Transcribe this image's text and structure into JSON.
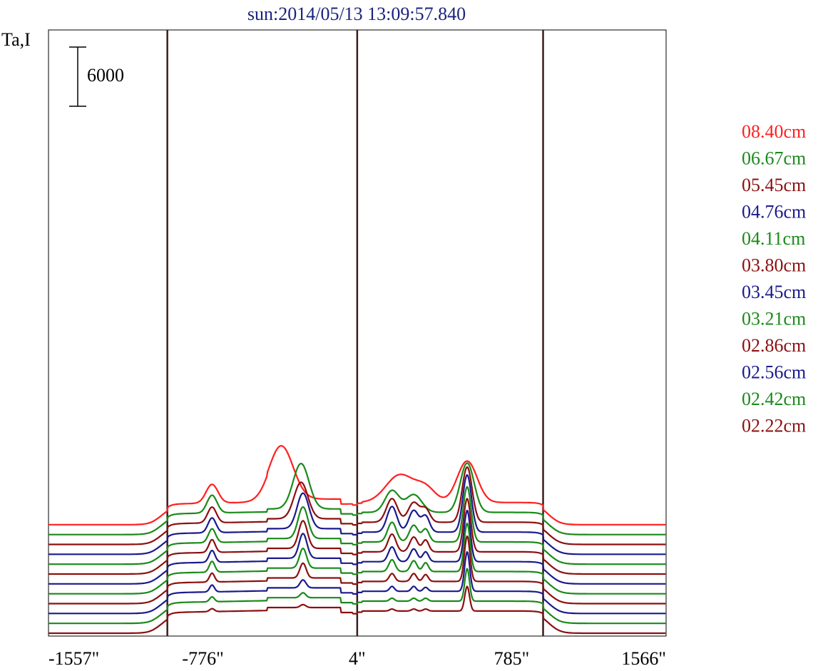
{
  "chart_data": {
    "type": "line",
    "title": "sun:2014/05/13 13:09:57.840",
    "ylabel": "Ta,I",
    "scale_bar_label": "6000",
    "scale_bar_value": 6000,
    "x_tick_labels": [
      "-1557\"",
      "-776\"",
      "4\"",
      "785\"",
      "1566\""
    ],
    "x_tick_values": [
      -1557,
      -776,
      4,
      785,
      1566
    ],
    "xlim": [
      -1557,
      1566
    ],
    "vertical_lines": [
      -956,
      4,
      944
    ],
    "legend_position": "right",
    "series": [
      {
        "name": "08.40cm",
        "color": "#ff1f1f",
        "offset": 12000,
        "peaks": [
          [
            -730,
            30,
            1900
          ],
          [
            -380,
            60,
            5400
          ],
          [
            220,
            70,
            2800
          ],
          [
            350,
            50,
            1400
          ],
          [
            560,
            50,
            4200
          ]
        ],
        "shoulder": 1400,
        "half": "mono"
      },
      {
        "name": "06.67cm",
        "color": "#1a8a1a",
        "offset": 11000,
        "peaks": [
          [
            -730,
            25,
            1800
          ],
          [
            -280,
            40,
            4600
          ],
          [
            180,
            35,
            2200
          ],
          [
            290,
            40,
            1800
          ],
          [
            560,
            35,
            5000
          ]
        ],
        "shoulder": 1400,
        "half": "double"
      },
      {
        "name": "05.45cm",
        "color": "#8b1010",
        "offset": 10000,
        "peaks": [
          [
            -730,
            22,
            1600
          ],
          [
            -280,
            35,
            3700
          ],
          [
            180,
            28,
            2400
          ],
          [
            290,
            28,
            2000
          ],
          [
            350,
            22,
            1300
          ],
          [
            560,
            25,
            5600
          ]
        ],
        "shoulder": 1400,
        "half": "double"
      },
      {
        "name": "04.76cm",
        "color": "#1a1a8c",
        "offset": 9000,
        "peaks": [
          [
            -730,
            20,
            1500
          ],
          [
            -270,
            30,
            3600
          ],
          [
            180,
            25,
            2600
          ],
          [
            290,
            25,
            2200
          ],
          [
            350,
            20,
            1600
          ],
          [
            560,
            22,
            5800
          ]
        ],
        "shoulder": 1400,
        "half": "double"
      },
      {
        "name": "04.11cm",
        "color": "#1a8a1a",
        "offset": 8000,
        "peaks": [
          [
            -730,
            18,
            1400
          ],
          [
            -270,
            25,
            3200
          ],
          [
            180,
            22,
            2000
          ],
          [
            290,
            22,
            1700
          ],
          [
            350,
            18,
            1300
          ],
          [
            560,
            20,
            5600
          ]
        ],
        "shoulder": 1400,
        "half": "double"
      },
      {
        "name": "03.80cm",
        "color": "#8b1010",
        "offset": 7000,
        "peaks": [
          [
            -730,
            16,
            1300
          ],
          [
            -270,
            22,
            2800
          ],
          [
            180,
            20,
            1800
          ],
          [
            290,
            20,
            1500
          ],
          [
            350,
            16,
            1200
          ],
          [
            560,
            18,
            5400
          ]
        ],
        "shoulder": 1400,
        "half": "double"
      },
      {
        "name": "03.45cm",
        "color": "#1a1a8c",
        "offset": 6000,
        "peaks": [
          [
            -730,
            15,
            1200
          ],
          [
            -270,
            20,
            2500
          ],
          [
            180,
            18,
            1500
          ],
          [
            290,
            18,
            1300
          ],
          [
            350,
            15,
            1000
          ],
          [
            560,
            16,
            5200
          ]
        ],
        "shoulder": 1400,
        "half": "double"
      },
      {
        "name": "03.21cm",
        "color": "#1a8a1a",
        "offset": 5000,
        "peaks": [
          [
            -730,
            14,
            1100
          ],
          [
            -270,
            18,
            2000
          ],
          [
            180,
            16,
            1200
          ],
          [
            290,
            16,
            1100
          ],
          [
            350,
            14,
            900
          ],
          [
            560,
            15,
            4900
          ]
        ],
        "shoulder": 1400,
        "half": "double"
      },
      {
        "name": "02.86cm",
        "color": "#8b1010",
        "offset": 4000,
        "peaks": [
          [
            -730,
            13,
            900
          ],
          [
            -270,
            16,
            1500
          ],
          [
            180,
            14,
            800
          ],
          [
            290,
            14,
            800
          ],
          [
            350,
            13,
            700
          ],
          [
            560,
            14,
            4600
          ]
        ],
        "shoulder": 1400,
        "half": "double"
      },
      {
        "name": "02.56cm",
        "color": "#1a1a8c",
        "offset": 3000,
        "peaks": [
          [
            -730,
            12,
            700
          ],
          [
            -270,
            15,
            800
          ],
          [
            180,
            12,
            500
          ],
          [
            290,
            12,
            500
          ],
          [
            350,
            12,
            400
          ],
          [
            560,
            13,
            4000
          ]
        ],
        "shoulder": 1400,
        "half": "double"
      },
      {
        "name": "02.42cm",
        "color": "#1a8a1a",
        "offset": 2000,
        "peaks": [
          [
            -730,
            12,
            500
          ],
          [
            -270,
            14,
            500
          ],
          [
            180,
            12,
            300
          ],
          [
            290,
            12,
            300
          ],
          [
            350,
            12,
            300
          ],
          [
            560,
            12,
            3300
          ]
        ],
        "shoulder": 1400,
        "half": "double"
      },
      {
        "name": "02.22cm",
        "color": "#8b1010",
        "offset": 1000,
        "peaks": [
          [
            -730,
            12,
            300
          ],
          [
            -270,
            14,
            300
          ],
          [
            180,
            12,
            200
          ],
          [
            290,
            12,
            200
          ],
          [
            350,
            12,
            200
          ],
          [
            560,
            12,
            2500
          ]
        ],
        "shoulder": 1400,
        "half": "double"
      }
    ]
  }
}
